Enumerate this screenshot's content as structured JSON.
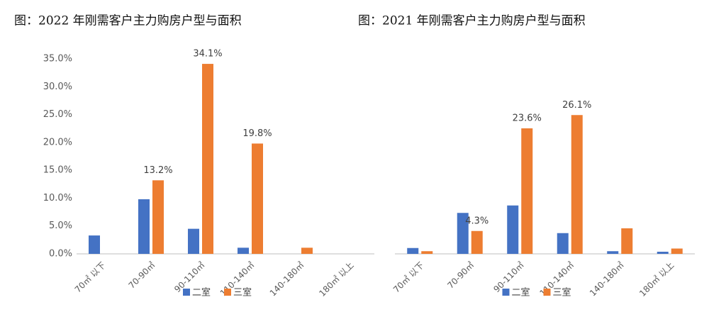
{
  "charts": [
    {
      "type": "bar",
      "title": "图：2022 年刚需客户主力购房户型与面积",
      "categories": [
        "70㎡ 以下",
        "70-90㎡",
        "90-110㎡",
        "110-140㎡",
        "140-180㎡",
        "180㎡ 以上"
      ],
      "series": [
        {
          "name": "二室",
          "color": "#4472c4",
          "values": [
            3.3,
            9.8,
            4.5,
            1.1,
            0,
            0
          ]
        },
        {
          "name": "三室",
          "color": "#ed7d31",
          "values": [
            0,
            13.2,
            34.1,
            19.8,
            1.1,
            0
          ],
          "value_labels": [
            null,
            "13.2%",
            "34.1%",
            "19.8%",
            null,
            null
          ]
        }
      ],
      "ylim": [
        0,
        35
      ],
      "yticks": [
        {
          "value": 0,
          "label": "0.0%"
        },
        {
          "value": 5,
          "label": "5.0%"
        },
        {
          "value": 10,
          "label": "10.0%"
        },
        {
          "value": 15,
          "label": "15.0%"
        },
        {
          "value": 20,
          "label": "20.0%"
        },
        {
          "value": 25,
          "label": "25.0%"
        },
        {
          "value": 30,
          "label": "30.0%"
        },
        {
          "value": 35,
          "label": "35.0%"
        }
      ],
      "legend": "bottom"
    },
    {
      "type": "bar",
      "title": "图：2021 年刚需客户主力购房户型与面积",
      "categories": [
        "70㎡ 以下",
        "70-90㎡",
        "90-110㎡",
        "110-140㎡",
        "140-180㎡",
        "180㎡ 以上"
      ],
      "series": [
        {
          "name": "二室",
          "color": "#4472c4",
          "values": [
            1.1,
            7.7,
            9.1,
            3.9,
            0.5,
            0.4
          ]
        },
        {
          "name": "三室",
          "color": "#ed7d31",
          "values": [
            0.5,
            4.3,
            23.6,
            26.1,
            4.8,
            1.0
          ],
          "value_labels": [
            null,
            "4.3%",
            "23.6%",
            "26.1%",
            null,
            null
          ]
        }
      ],
      "ylim": [
        0,
        30
      ],
      "legend": "bottom"
    }
  ]
}
